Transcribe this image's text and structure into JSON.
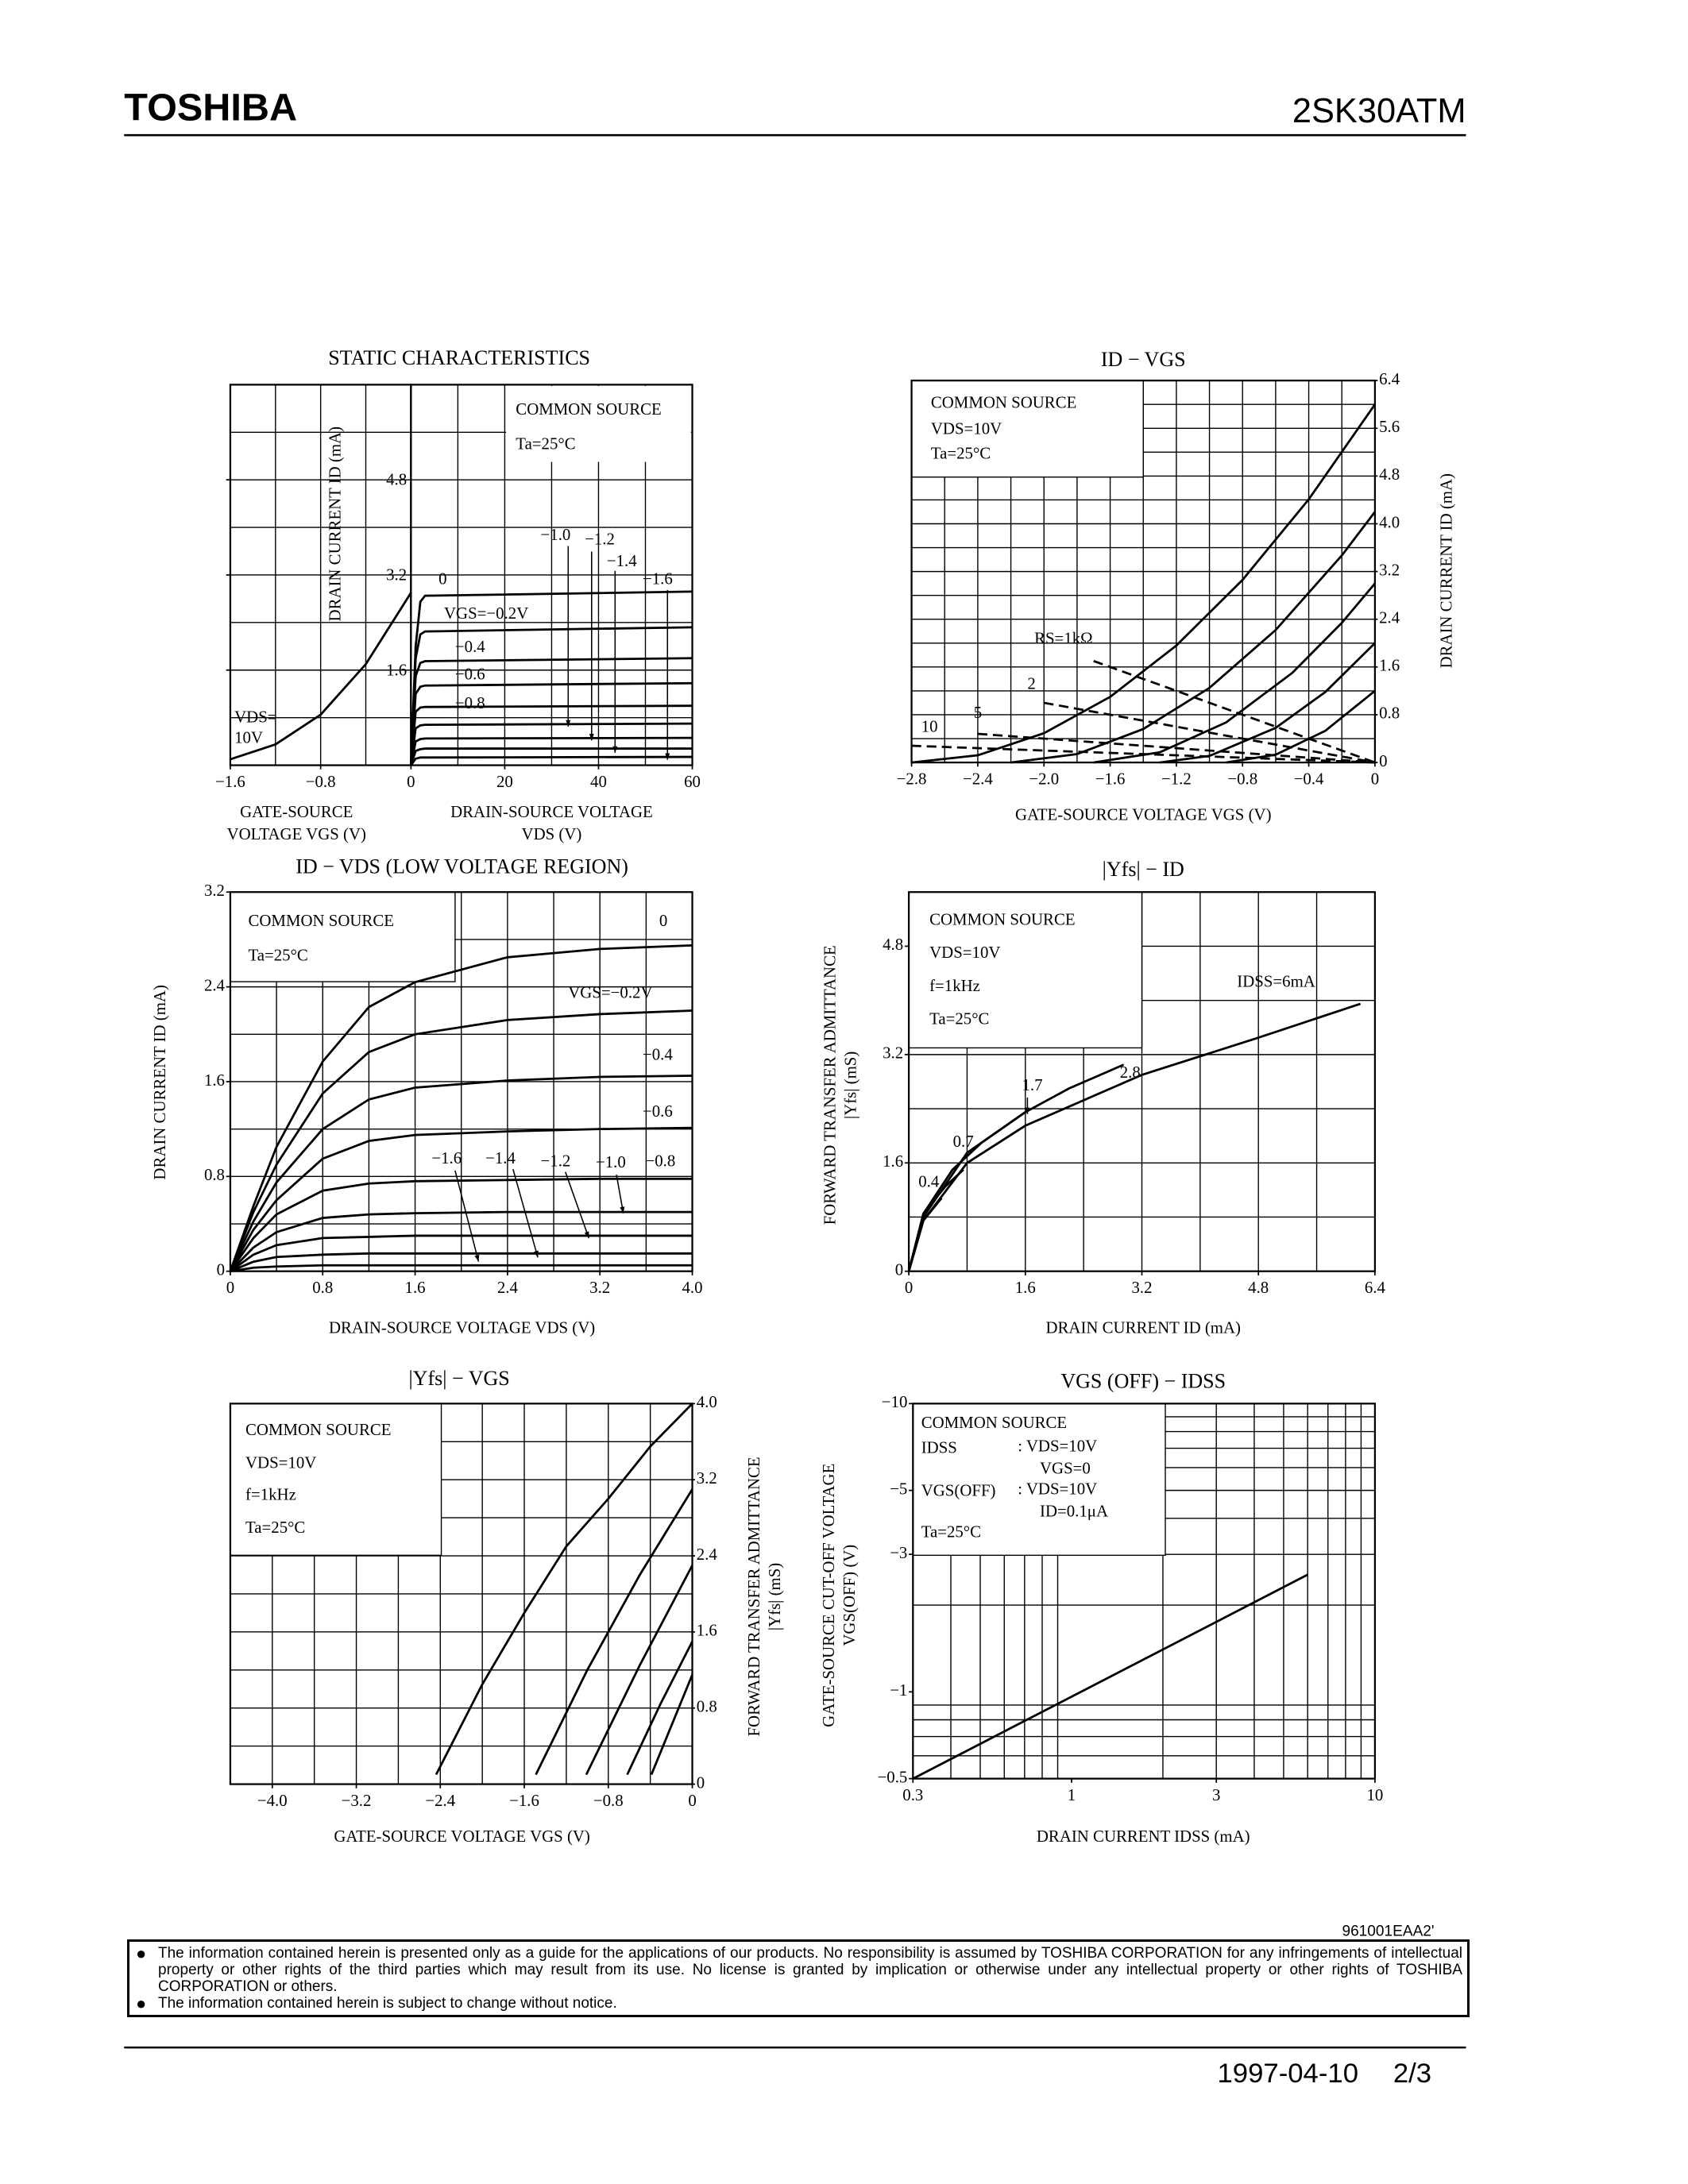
{
  "header": {
    "brand": "TOSHIBA",
    "part": "2SK30ATM"
  },
  "chart_data": [
    {
      "type": "line",
      "title": "STATIC CHARACTERISTICS",
      "color": "#000000",
      "xlabel": [
        "GATE-SOURCE",
        "VOLTAGE  VGS  (V)"
      ],
      "ylabel": "DRAIN CURRENT  ID  (mA)",
      "xlim": [
        -1.6,
        0
      ],
      "ylim": [
        0,
        6.4
      ],
      "xticks": [
        {
          "value": -1.6,
          "label": "−1.6"
        },
        {
          "value": -0.8,
          "label": "−0.8"
        }
      ],
      "yticks": [
        1.6,
        3.2,
        4.8
      ],
      "xgrid": [
        -1.2,
        -0.8,
        -0.4
      ],
      "ygrid": [
        0.8,
        1.6,
        2.4,
        3.2,
        4.0,
        4.8,
        5.6
      ],
      "annotations": [
        "VDS=",
        "10V"
      ],
      "series": [
        {
          "x": [
            -1.6,
            -1.2,
            -0.8,
            -0.4,
            0
          ],
          "values": [
            0.1,
            0.35,
            0.85,
            1.7,
            2.9
          ]
        }
      ]
    },
    {
      "type": "line",
      "color": "#000000",
      "xlabel": [
        "DRAIN-SOURCE VOLTAGE",
        "VDS  (V)"
      ],
      "xlim": [
        0,
        60
      ],
      "ylim": [
        0,
        6.4
      ],
      "xticks": [
        0,
        20,
        40,
        60
      ],
      "xgrid": [
        10,
        20,
        30,
        40,
        50
      ],
      "ygrid": [
        0.8,
        1.6,
        2.4,
        3.2,
        4.0,
        4.8,
        5.6
      ],
      "annotations": [
        "COMMON SOURCE",
        "Ta=25°C"
      ],
      "series": [
        {
          "name": "0",
          "x": [
            0,
            1,
            2,
            3,
            60
          ],
          "values": [
            0,
            2.0,
            2.75,
            2.85,
            2.92
          ]
        },
        {
          "name": "VGS=−0.2V",
          "x": [
            0,
            1,
            2,
            3,
            60
          ],
          "values": [
            0,
            1.8,
            2.2,
            2.25,
            2.32
          ]
        },
        {
          "name": "−0.4",
          "x": [
            0,
            1,
            2,
            3,
            60
          ],
          "values": [
            0,
            1.5,
            1.72,
            1.75,
            1.8
          ]
        },
        {
          "name": "−0.6",
          "x": [
            0,
            1,
            2,
            3,
            60
          ],
          "values": [
            0,
            1.2,
            1.32,
            1.34,
            1.38
          ]
        },
        {
          "name": "−0.8",
          "x": [
            0,
            1,
            2,
            3,
            60
          ],
          "values": [
            0,
            0.9,
            0.97,
            0.98,
            1.0
          ]
        },
        {
          "name": "−1.0",
          "x": [
            0,
            1,
            2,
            3,
            60
          ],
          "values": [
            0,
            0.62,
            0.67,
            0.68,
            0.7
          ]
        },
        {
          "name": "−1.2",
          "x": [
            0,
            1,
            2,
            3,
            60
          ],
          "values": [
            0,
            0.4,
            0.44,
            0.45,
            0.46
          ]
        },
        {
          "name": "−1.4",
          "x": [
            0,
            1,
            2,
            3,
            60
          ],
          "values": [
            0,
            0.24,
            0.27,
            0.28,
            0.28
          ]
        },
        {
          "name": "−1.6",
          "x": [
            0,
            1,
            2,
            3,
            60
          ],
          "values": [
            0,
            0.11,
            0.13,
            0.13,
            0.14
          ]
        }
      ]
    },
    {
      "type": "line",
      "title": "ID − VGS",
      "color": "#000000",
      "xlabel": "GATE-SOURCE VOLTAGE  VGS  (V)",
      "ylabel": "DRAIN CURRENT  ID  (mA)",
      "xlim": [
        -2.8,
        0
      ],
      "ylim": [
        0,
        6.4
      ],
      "xticks": [
        {
          "value": -2.8,
          "label": "−2.8"
        },
        {
          "value": -2.4,
          "label": "−2.4"
        },
        {
          "value": -2.0,
          "label": "−2.0"
        },
        {
          "value": -1.6,
          "label": "−1.6"
        },
        {
          "value": -1.2,
          "label": "−1.2"
        },
        {
          "value": -0.8,
          "label": "−0.8"
        },
        {
          "value": -0.4,
          "label": "−0.4"
        },
        0
      ],
      "yticks": [
        0,
        0.8,
        1.6,
        2.4,
        3.2,
        {
          "value": 4.0,
          "label": "4.0"
        },
        4.8,
        5.6,
        6.4
      ],
      "xgrid": [
        -2.6,
        -2.4,
        -2.2,
        -2.0,
        -1.8,
        -1.6,
        -1.4,
        -1.2,
        -1.0,
        -0.8,
        -0.6,
        -0.4,
        -0.2
      ],
      "ygrid": [
        0.4,
        0.8,
        1.2,
        1.6,
        2.0,
        2.4,
        2.8,
        3.2,
        3.6,
        4.0,
        4.4,
        4.8,
        5.2,
        5.6,
        6.0
      ],
      "annotations": [
        "COMMON SOURCE",
        "VDS=10V",
        "Ta=25°C"
      ],
      "series": [
        {
          "x": [
            -2.8,
            -2.4,
            -2.0,
            -1.6,
            -1.2,
            -0.8,
            -0.4,
            0
          ],
          "values": [
            0,
            0.12,
            0.49,
            1.1,
            1.96,
            3.06,
            4.41,
            6.0
          ]
        },
        {
          "x": [
            -2.2,
            -1.8,
            -1.4,
            -1.0,
            -0.6,
            -0.2,
            0
          ],
          "values": [
            0,
            0.14,
            0.56,
            1.25,
            2.22,
            3.47,
            4.2
          ]
        },
        {
          "x": [
            -1.7,
            -1.3,
            -0.9,
            -0.5,
            -0.2,
            0
          ],
          "values": [
            0,
            0.17,
            0.67,
            1.5,
            2.34,
            3.0
          ]
        },
        {
          "x": [
            -1.3,
            -1.0,
            -0.6,
            -0.3,
            0
          ],
          "values": [
            0,
            0.11,
            0.58,
            1.18,
            2.0
          ]
        },
        {
          "x": [
            -0.9,
            -0.6,
            -0.3,
            0
          ],
          "values": [
            0,
            0.13,
            0.53,
            1.2
          ]
        },
        {
          "name": "RS=1kΩ",
          "dashed": true,
          "x": [
            -1.7,
            0
          ],
          "values": [
            1.7,
            0
          ]
        },
        {
          "name": "2",
          "dashed": true,
          "x": [
            -2.0,
            0
          ],
          "values": [
            1.0,
            0
          ]
        },
        {
          "name": "5",
          "dashed": true,
          "x": [
            -2.4,
            0
          ],
          "values": [
            0.48,
            0
          ]
        },
        {
          "name": "10",
          "dashed": true,
          "x": [
            -2.8,
            0
          ],
          "values": [
            0.28,
            0
          ]
        }
      ]
    },
    {
      "type": "line",
      "title": "ID − VDS   (LOW VOLTAGE REGION)",
      "color": "#000000",
      "xlabel": "DRAIN-SOURCE VOLTAGE  VDS  (V)",
      "ylabel": "DRAIN CURRENT  ID  (mA)",
      "xlim": [
        0,
        4.0
      ],
      "ylim": [
        0,
        3.2
      ],
      "xticks": [
        0,
        0.8,
        1.6,
        2.4,
        3.2,
        {
          "value": 4.0,
          "label": "4.0"
        }
      ],
      "yticks": [
        0,
        0.8,
        1.6,
        2.4,
        3.2
      ],
      "xgrid": [
        0.4,
        0.8,
        1.2,
        1.6,
        2.0,
        2.4,
        2.8,
        3.2,
        3.6
      ],
      "ygrid": [
        0.4,
        0.8,
        1.2,
        1.6,
        2.0,
        2.4,
        2.8
      ],
      "annotations": [
        "COMMON SOURCE",
        "Ta=25°C"
      ],
      "series": [
        {
          "name": "0",
          "x": [
            0,
            0.2,
            0.4,
            0.8,
            1.2,
            1.6,
            2.4,
            3.2,
            4.0
          ],
          "values": [
            0,
            0.55,
            1.05,
            1.77,
            2.23,
            2.44,
            2.65,
            2.72,
            2.75
          ]
        },
        {
          "name": "VGS=−0.2V",
          "x": [
            0,
            0.2,
            0.4,
            0.8,
            1.2,
            1.6,
            2.4,
            3.2,
            4.0
          ],
          "values": [
            0,
            0.5,
            0.9,
            1.5,
            1.85,
            2.0,
            2.12,
            2.17,
            2.2
          ]
        },
        {
          "name": "−0.4",
          "x": [
            0,
            0.2,
            0.4,
            0.8,
            1.2,
            1.6,
            2.4,
            3.2,
            4.0
          ],
          "values": [
            0,
            0.42,
            0.75,
            1.2,
            1.45,
            1.55,
            1.61,
            1.64,
            1.65
          ]
        },
        {
          "name": "−0.6",
          "x": [
            0,
            0.2,
            0.4,
            0.8,
            1.2,
            1.6,
            2.4,
            3.2,
            4.0
          ],
          "values": [
            0,
            0.35,
            0.6,
            0.95,
            1.1,
            1.15,
            1.18,
            1.2,
            1.21
          ]
        },
        {
          "name": "−0.8",
          "x": [
            0,
            0.2,
            0.4,
            0.8,
            1.2,
            1.6,
            2.4,
            3.2,
            4.0
          ],
          "values": [
            0,
            0.28,
            0.48,
            0.68,
            0.74,
            0.76,
            0.77,
            0.78,
            0.78
          ]
        },
        {
          "name": "−1.0",
          "x": [
            0,
            0.2,
            0.4,
            0.8,
            1.2,
            1.6,
            2.4,
            3.2,
            4.0
          ],
          "values": [
            0,
            0.2,
            0.33,
            0.45,
            0.48,
            0.49,
            0.5,
            0.5,
            0.5
          ]
        },
        {
          "name": "−1.2",
          "x": [
            0,
            0.2,
            0.4,
            0.8,
            1.2,
            1.6,
            2.4,
            3.2,
            4.0
          ],
          "values": [
            0,
            0.14,
            0.22,
            0.28,
            0.29,
            0.3,
            0.3,
            0.3,
            0.3
          ]
        },
        {
          "name": "−1.4",
          "x": [
            0,
            0.2,
            0.4,
            0.8,
            1.2,
            1.6,
            2.4,
            3.2,
            4.0
          ],
          "values": [
            0,
            0.08,
            0.12,
            0.14,
            0.15,
            0.15,
            0.15,
            0.15,
            0.15
          ]
        },
        {
          "name": "−1.6",
          "x": [
            0,
            0.2,
            0.4,
            0.8,
            1.2,
            1.6,
            2.4,
            3.2,
            4.0
          ],
          "values": [
            0,
            0.03,
            0.04,
            0.05,
            0.05,
            0.05,
            0.05,
            0.05,
            0.05
          ]
        }
      ]
    },
    {
      "type": "line",
      "title": "|Yfs| − ID",
      "color": "#000000",
      "xlabel": "DRAIN CURRENT  ID  (mA)",
      "ylabel": [
        "FORWARD TRANSFER ADMITTANCE",
        "|Yfs|  (mS)"
      ],
      "xlim": [
        0,
        6.4
      ],
      "ylim": [
        0,
        5.6
      ],
      "xticks": [
        0,
        1.6,
        3.2,
        4.8,
        6.4
      ],
      "yticks": [
        0,
        1.6,
        3.2,
        4.8
      ],
      "xgrid": [
        0.8,
        1.6,
        2.4,
        3.2,
        4.0,
        4.8,
        5.6
      ],
      "ygrid": [
        0.8,
        1.6,
        2.4,
        3.2,
        4.0,
        4.8
      ],
      "annotations": [
        "COMMON SOURCE",
        "VDS=10V",
        "f=1kHz",
        "Ta=25°C"
      ],
      "series": [
        {
          "name": "IDSS=6mA",
          "x": [
            0,
            0.2,
            0.8,
            1.6,
            3.2,
            4.8,
            6.2
          ],
          "values": [
            0,
            0.75,
            1.6,
            2.15,
            2.9,
            3.45,
            3.95
          ]
        },
        {
          "name": "2.8",
          "x": [
            0,
            0.2,
            0.8,
            1.6,
            2.2,
            2.95
          ],
          "values": [
            0,
            0.8,
            1.75,
            2.35,
            2.7,
            3.05
          ]
        },
        {
          "name": "1.7",
          "x": [
            0,
            0.2,
            0.6,
            1.0,
            1.6
          ],
          "values": [
            0,
            0.85,
            1.5,
            1.9,
            2.35
          ]
        },
        {
          "name": "0.7",
          "x": [
            0,
            0.2,
            0.5,
            0.75
          ],
          "values": [
            0,
            0.85,
            1.25,
            1.5
          ]
        },
        {
          "name": "0.4",
          "x": [
            0,
            0.2,
            0.45
          ],
          "values": [
            0,
            0.75,
            1.08
          ]
        }
      ]
    },
    {
      "type": "line",
      "title": "|Yfs| − VGS",
      "color": "#000000",
      "xlabel": "GATE-SOURCE VOLTAGE  VGS  (V)",
      "ylabel": [
        "FORWARD TRANSFER ADMITTANCE",
        "|Yfs|  (mS)"
      ],
      "xlim": [
        -4.4,
        0
      ],
      "ylim": [
        0,
        4.0
      ],
      "xticks": [
        {
          "value": -4.0,
          "label": "−4.0"
        },
        {
          "value": -3.2,
          "label": "−3.2"
        },
        {
          "value": -2.4,
          "label": "−2.4"
        },
        {
          "value": -1.6,
          "label": "−1.6"
        },
        {
          "value": -0.8,
          "label": "−0.8"
        },
        0
      ],
      "yticks": [
        0,
        0.8,
        1.6,
        2.4,
        3.2,
        {
          "value": 4.0,
          "label": "4.0"
        }
      ],
      "xgrid": [
        -4.0,
        -3.6,
        -3.2,
        -2.8,
        -2.4,
        -2.0,
        -1.6,
        -1.2,
        -0.8,
        -0.4
      ],
      "ygrid": [
        0.4,
        0.8,
        1.2,
        1.6,
        2.0,
        2.4,
        2.8,
        3.2,
        3.6
      ],
      "annotations": [
        "COMMON SOURCE",
        "VDS=10V",
        "f=1kHz",
        "Ta=25°C"
      ],
      "series": [
        {
          "x": [
            -2.44,
            -2.0,
            -1.6,
            -1.2,
            -0.8,
            -0.4,
            0
          ],
          "values": [
            0.1,
            1.05,
            1.8,
            2.5,
            3.0,
            3.55,
            4.0
          ]
        },
        {
          "x": [
            -1.49,
            -1.0,
            -0.5,
            0
          ],
          "values": [
            0.1,
            1.2,
            2.2,
            3.1
          ]
        },
        {
          "x": [
            -1.01,
            -0.5,
            0
          ],
          "values": [
            0.1,
            1.25,
            2.3
          ]
        },
        {
          "x": [
            -0.62,
            -0.3,
            0
          ],
          "values": [
            0.1,
            0.85,
            1.5
          ]
        },
        {
          "x": [
            -0.39,
            0
          ],
          "values": [
            0.1,
            1.15
          ]
        }
      ]
    },
    {
      "type": "line",
      "title": "VGS (OFF) − IDSS",
      "color": "#000000",
      "xscale": "log",
      "yscale": "log",
      "xlabel": "DRAIN CURRENT  IDSS  (mA)",
      "ylabel": [
        "GATE-SOURCE CUT-OFF VOLTAGE",
        "VGS(OFF)  (V)"
      ],
      "xlim": [
        0.3,
        10
      ],
      "ylim": [
        -0.5,
        -10
      ],
      "xticks": [
        0.3,
        1,
        3,
        10
      ],
      "yticks": [
        {
          "value": -10,
          "label": "−10"
        },
        {
          "value": -5,
          "label": "−5"
        },
        {
          "value": -3,
          "label": "−3"
        },
        {
          "value": -1,
          "label": "−1"
        },
        {
          "value": -0.5,
          "label": "−0.5"
        }
      ],
      "xgrid": [
        0.4,
        0.5,
        0.6,
        0.7,
        0.8,
        0.9,
        2,
        3,
        4,
        5,
        6,
        7,
        8,
        9
      ],
      "ygrid": [
        -0.6,
        -0.7,
        -0.8,
        -0.9,
        -2,
        -3,
        -4,
        -5,
        -6,
        -7,
        -8,
        -9
      ],
      "annotations": [
        "COMMON SOURCE",
        "IDSS",
        ":  VDS=10V",
        "VGS=0",
        "VGS(OFF)",
        ":  VDS=10V",
        "ID=0.1μA",
        "Ta=25°C"
      ],
      "series": [
        {
          "x": [
            0.3,
            6
          ],
          "values": [
            -0.5,
            -2.55
          ]
        }
      ]
    }
  ],
  "document_code": "961001EAA2'",
  "disclaimer": [
    "The information contained herein is presented only as a guide for the applications of our products. No responsibility is assumed by TOSHIBA CORPORATION for any infringements of intellectual property or other rights of the third parties which may result from its use. No license is granted by implication or otherwise under any intellectual property or other rights of TOSHIBA CORPORATION or others.",
    "The information contained herein is subject to change without notice."
  ],
  "footer": {
    "date": "1997-04-10",
    "page": "2/3"
  }
}
